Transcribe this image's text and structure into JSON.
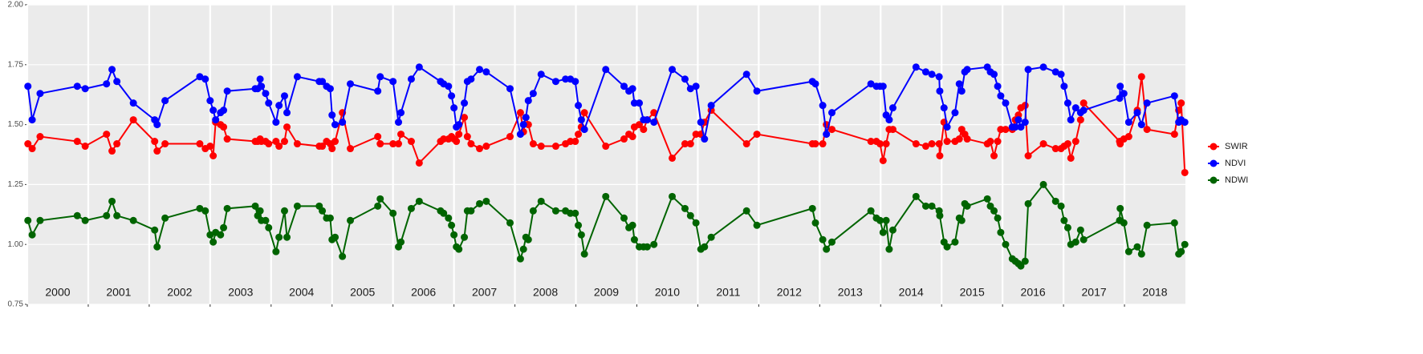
{
  "chart_data": {
    "type": "line",
    "legend": "right",
    "grid": true,
    "xlim": [
      2000,
      2019
    ],
    "ylim": [
      0.75,
      2.0
    ],
    "yticks": [
      {
        "value": 0.75,
        "label": "0.75"
      },
      {
        "value": 1.0,
        "label": "1.00"
      },
      {
        "value": 1.25,
        "label": "1.25"
      },
      {
        "value": 1.5,
        "label": "1.50"
      },
      {
        "value": 1.75,
        "label": "1.75"
      },
      {
        "value": 2.0,
        "label": "2.00"
      }
    ],
    "xticks": [
      {
        "value": 2000,
        "label": "2000"
      },
      {
        "value": 2001,
        "label": "2001"
      },
      {
        "value": 2002,
        "label": "2002"
      },
      {
        "value": 2003,
        "label": "2003"
      },
      {
        "value": 2004,
        "label": "2004"
      },
      {
        "value": 2005,
        "label": "2005"
      },
      {
        "value": 2006,
        "label": "2006"
      },
      {
        "value": 2007,
        "label": "2007"
      },
      {
        "value": 2008,
        "label": "2008"
      },
      {
        "value": 2009,
        "label": "2009"
      },
      {
        "value": 2010,
        "label": "2010"
      },
      {
        "value": 2011,
        "label": "2011"
      },
      {
        "value": 2012,
        "label": "2012"
      },
      {
        "value": 2013,
        "label": "2013"
      },
      {
        "value": 2014,
        "label": "2014"
      },
      {
        "value": 2015,
        "label": "2015"
      },
      {
        "value": 2016,
        "label": "2016"
      },
      {
        "value": 2017,
        "label": "2017"
      },
      {
        "value": 2018,
        "label": "2018"
      }
    ],
    "x": [
      2000.01,
      2000.08,
      2000.21,
      2000.82,
      2000.95,
      2001.3,
      2001.39,
      2001.47,
      2001.74,
      2002.09,
      2002.13,
      2002.26,
      2002.83,
      2002.92,
      2003.0,
      2003.05,
      2003.09,
      2003.17,
      2003.22,
      2003.28,
      2003.74,
      2003.78,
      2003.82,
      2003.84,
      2003.91,
      2003.96,
      2004.08,
      2004.13,
      2004.22,
      2004.26,
      2004.43,
      2004.79,
      2004.84,
      2004.91,
      2004.97,
      2005.0,
      2005.05,
      2005.17,
      2005.3,
      2005.75,
      2005.79,
      2006.0,
      2006.09,
      2006.13,
      2006.3,
      2006.43,
      2006.78,
      2006.83,
      2006.91,
      2006.96,
      2007.0,
      2007.04,
      2007.08,
      2007.17,
      2007.22,
      2007.28,
      2007.42,
      2007.53,
      2007.92,
      2008.09,
      2008.14,
      2008.18,
      2008.22,
      2008.3,
      2008.43,
      2008.67,
      2008.83,
      2008.91,
      2008.99,
      2009.04,
      2009.09,
      2009.14,
      2009.49,
      2009.79,
      2009.87,
      2009.93,
      2009.96,
      2010.04,
      2010.11,
      2010.17,
      2010.28,
      2010.58,
      2010.79,
      2010.88,
      2010.97,
      2011.05,
      2011.11,
      2011.22,
      2011.8,
      2011.97,
      2012.88,
      2012.93,
      2013.05,
      2013.11,
      2013.2,
      2013.84,
      2013.93,
      2013.99,
      2014.04,
      2014.09,
      2014.14,
      2014.2,
      2014.58,
      2014.74,
      2014.84,
      2014.96,
      2014.97,
      2015.04,
      2015.09,
      2015.22,
      2015.29,
      2015.33,
      2015.38,
      2015.42,
      2015.75,
      2015.8,
      2015.86,
      2015.92,
      2015.97,
      2016.05,
      2016.16,
      2016.21,
      2016.26,
      2016.3,
      2016.37,
      2016.42,
      2016.67,
      2016.87,
      2016.96,
      2017.01,
      2017.07,
      2017.12,
      2017.2,
      2017.28,
      2017.33,
      2017.92,
      2017.93,
      2017.99,
      2018.07,
      2018.21,
      2018.28,
      2018.37,
      2018.82,
      2018.89,
      2018.93,
      2018.99
    ],
    "series": [
      {
        "name": "SWIR",
        "color": "#ff0000",
        "values": [
          1.42,
          1.4,
          1.45,
          1.43,
          1.41,
          1.46,
          1.39,
          1.42,
          1.52,
          1.43,
          1.39,
          1.42,
          1.42,
          1.4,
          1.41,
          1.37,
          1.51,
          1.5,
          1.49,
          1.44,
          1.43,
          1.43,
          1.44,
          1.43,
          1.43,
          1.42,
          1.43,
          1.41,
          1.43,
          1.49,
          1.42,
          1.41,
          1.41,
          1.43,
          1.42,
          1.4,
          1.43,
          1.55,
          1.4,
          1.45,
          1.42,
          1.42,
          1.42,
          1.46,
          1.43,
          1.34,
          1.43,
          1.44,
          1.44,
          1.45,
          1.44,
          1.43,
          1.46,
          1.53,
          1.45,
          1.42,
          1.4,
          1.41,
          1.45,
          1.55,
          1.47,
          1.53,
          1.5,
          1.42,
          1.41,
          1.41,
          1.42,
          1.43,
          1.43,
          1.46,
          1.49,
          1.55,
          1.41,
          1.44,
          1.46,
          1.45,
          1.49,
          1.5,
          1.48,
          1.52,
          1.55,
          1.36,
          1.42,
          1.42,
          1.46,
          1.46,
          1.51,
          1.56,
          1.42,
          1.46,
          1.42,
          1.42,
          1.42,
          1.5,
          1.48,
          1.43,
          1.43,
          1.42,
          1.35,
          1.42,
          1.48,
          1.48,
          1.42,
          1.41,
          1.42,
          1.42,
          1.37,
          1.51,
          1.43,
          1.43,
          1.44,
          1.48,
          1.46,
          1.44,
          1.42,
          1.43,
          1.37,
          1.43,
          1.48,
          1.48,
          1.48,
          1.52,
          1.54,
          1.57,
          1.58,
          1.37,
          1.42,
          1.4,
          1.4,
          1.41,
          1.42,
          1.36,
          1.43,
          1.52,
          1.59,
          1.43,
          1.42,
          1.44,
          1.45,
          1.56,
          1.7,
          1.48,
          1.46,
          1.56,
          1.59,
          1.3
        ]
      },
      {
        "name": "NDVI",
        "color": "#0000ff",
        "values": [
          1.66,
          1.52,
          1.63,
          1.66,
          1.65,
          1.67,
          1.73,
          1.68,
          1.59,
          1.52,
          1.5,
          1.6,
          1.7,
          1.69,
          1.6,
          1.56,
          1.52,
          1.55,
          1.56,
          1.64,
          1.65,
          1.65,
          1.69,
          1.66,
          1.63,
          1.59,
          1.51,
          1.58,
          1.62,
          1.55,
          1.7,
          1.68,
          1.68,
          1.66,
          1.65,
          1.54,
          1.5,
          1.51,
          1.67,
          1.64,
          1.7,
          1.68,
          1.51,
          1.55,
          1.69,
          1.74,
          1.68,
          1.67,
          1.66,
          1.62,
          1.57,
          1.49,
          1.5,
          1.59,
          1.68,
          1.69,
          1.73,
          1.72,
          1.65,
          1.46,
          1.5,
          1.53,
          1.6,
          1.63,
          1.71,
          1.68,
          1.69,
          1.69,
          1.68,
          1.58,
          1.52,
          1.48,
          1.73,
          1.66,
          1.64,
          1.65,
          1.59,
          1.59,
          1.52,
          1.52,
          1.51,
          1.73,
          1.69,
          1.65,
          1.66,
          1.51,
          1.44,
          1.58,
          1.71,
          1.64,
          1.68,
          1.67,
          1.58,
          1.46,
          1.55,
          1.67,
          1.66,
          1.66,
          1.66,
          1.54,
          1.52,
          1.57,
          1.74,
          1.72,
          1.71,
          1.7,
          1.64,
          1.57,
          1.49,
          1.55,
          1.67,
          1.64,
          1.72,
          1.73,
          1.74,
          1.72,
          1.71,
          1.66,
          1.62,
          1.59,
          1.49,
          1.49,
          1.52,
          1.49,
          1.51,
          1.73,
          1.74,
          1.72,
          1.71,
          1.66,
          1.59,
          1.52,
          1.57,
          1.55,
          1.56,
          1.61,
          1.66,
          1.63,
          1.51,
          1.55,
          1.5,
          1.59,
          1.62,
          1.51,
          1.52,
          1.51
        ]
      },
      {
        "name": "NDWI",
        "color": "#006400",
        "values": [
          1.1,
          1.04,
          1.1,
          1.12,
          1.1,
          1.12,
          1.18,
          1.12,
          1.1,
          1.06,
          0.99,
          1.11,
          1.15,
          1.14,
          1.04,
          1.01,
          1.05,
          1.04,
          1.07,
          1.15,
          1.16,
          1.12,
          1.14,
          1.1,
          1.1,
          1.07,
          0.97,
          1.03,
          1.14,
          1.03,
          1.16,
          1.16,
          1.14,
          1.11,
          1.11,
          1.02,
          1.03,
          0.95,
          1.1,
          1.16,
          1.19,
          1.13,
          0.99,
          1.01,
          1.15,
          1.18,
          1.14,
          1.13,
          1.11,
          1.08,
          1.04,
          0.99,
          0.98,
          1.03,
          1.14,
          1.14,
          1.17,
          1.18,
          1.09,
          0.94,
          0.98,
          1.03,
          1.02,
          1.14,
          1.18,
          1.14,
          1.14,
          1.13,
          1.13,
          1.08,
          1.04,
          0.96,
          1.2,
          1.11,
          1.07,
          1.08,
          1.02,
          0.99,
          0.99,
          0.99,
          1.0,
          1.2,
          1.15,
          1.12,
          1.09,
          0.98,
          0.99,
          1.03,
          1.14,
          1.08,
          1.15,
          1.09,
          1.02,
          0.98,
          1.01,
          1.14,
          1.11,
          1.1,
          1.05,
          1.1,
          0.98,
          1.06,
          1.2,
          1.16,
          1.16,
          1.14,
          1.12,
          1.01,
          0.99,
          1.01,
          1.11,
          1.1,
          1.17,
          1.16,
          1.19,
          1.16,
          1.14,
          1.11,
          1.05,
          1.0,
          0.94,
          0.93,
          0.92,
          0.91,
          0.93,
          1.17,
          1.25,
          1.18,
          1.16,
          1.1,
          1.07,
          1.0,
          1.01,
          1.06,
          1.02,
          1.1,
          1.15,
          1.09,
          0.97,
          0.99,
          0.96,
          1.08,
          1.09,
          0.96,
          0.97,
          1.0
        ]
      }
    ]
  }
}
